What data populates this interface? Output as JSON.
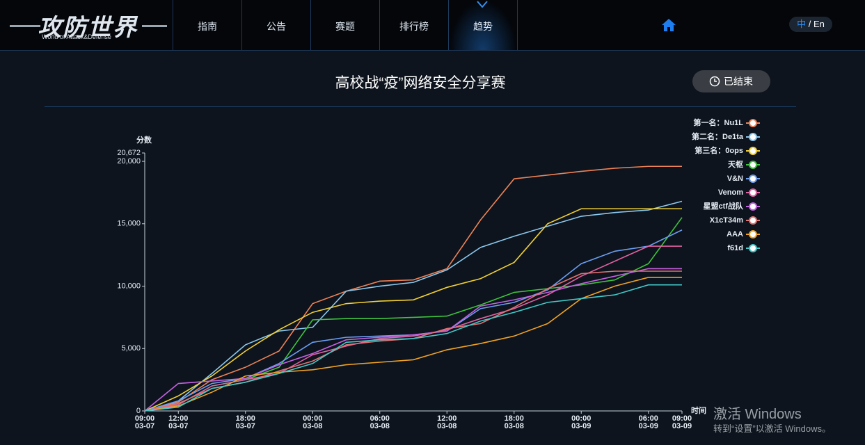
{
  "header": {
    "logo": "攻防世界",
    "logo_sub": "World of Attack&Defense",
    "nav": [
      "指南",
      "公告",
      "赛题",
      "排行榜",
      "趋势"
    ],
    "lang_zh": "中",
    "lang_en": "/ En"
  },
  "contest": {
    "title": "高校战“疫”网络安全分享赛",
    "status": "已结束"
  },
  "chart_data": {
    "type": "line",
    "ylabel": "分数",
    "xlabel": "时间",
    "x": [
      "03-07 09:00",
      "03-07 12:00",
      "03-07 15:00",
      "03-07 18:00",
      "03-07 21:00",
      "03-08 00:00",
      "03-08 03:00",
      "03-08 06:00",
      "03-08 09:00",
      "03-08 12:00",
      "03-08 15:00",
      "03-08 18:00",
      "03-08 21:00",
      "03-09 00:00",
      "03-09 03:00",
      "03-09 06:00",
      "03-09 09:00"
    ],
    "xlim": [
      "03-07 09:00",
      "03-09 09:00"
    ],
    "xticks": [
      {
        "value": "03-07 09:00",
        "label": [
          "09:00",
          "03-07"
        ]
      },
      {
        "value": "03-07 12:00",
        "label": [
          "12:00",
          "03-07"
        ]
      },
      {
        "value": "03-07 18:00",
        "label": [
          "18:00",
          "03-07"
        ]
      },
      {
        "value": "03-08 00:00",
        "label": [
          "00:00",
          "03-08"
        ]
      },
      {
        "value": "03-08 06:00",
        "label": [
          "06:00",
          "03-08"
        ]
      },
      {
        "value": "03-08 12:00",
        "label": [
          "12:00",
          "03-08"
        ]
      },
      {
        "value": "03-08 18:00",
        "label": [
          "18:00",
          "03-08"
        ]
      },
      {
        "value": "03-09 00:00",
        "label": [
          "00:00",
          "03-09"
        ]
      },
      {
        "value": "03-09 06:00",
        "label": [
          "06:00",
          "03-09"
        ]
      },
      {
        "value": "03-09 09:00",
        "label": [
          "09:00",
          "03-09"
        ]
      }
    ],
    "ylim": [
      0,
      20672
    ],
    "yticks": [
      0,
      {
        "value": 5000,
        "label": "5,000"
      },
      {
        "value": 10000,
        "label": "10,000"
      },
      {
        "value": 15000,
        "label": "15,000"
      },
      {
        "value": 20000,
        "label": "20,000"
      },
      {
        "value": 20672,
        "label": "20,672"
      }
    ],
    "series": [
      {
        "name": "第一名：Nu1L",
        "color": "#ee8256",
        "values": [
          0,
          700,
          2500,
          3500,
          4800,
          8600,
          9600,
          10400,
          10500,
          11400,
          15300,
          18600,
          18900,
          19200,
          19450,
          19600,
          19600
        ]
      },
      {
        "name": "第二名：De1ta",
        "color": "#8cc8ee",
        "values": [
          0,
          800,
          3000,
          5300,
          6400,
          6700,
          9600,
          10000,
          10300,
          11300,
          13100,
          14000,
          14800,
          15600,
          15900,
          16100,
          16800
        ]
      },
      {
        "name": "第三名：0ops",
        "color": "#f2d034",
        "values": [
          0,
          1200,
          2800,
          4800,
          6500,
          7900,
          8600,
          8800,
          8900,
          9900,
          10600,
          11900,
          15000,
          16200,
          16200,
          16200,
          16200
        ]
      },
      {
        "name": "天枢",
        "color": "#3ec43e",
        "values": [
          0,
          500,
          2000,
          2500,
          3500,
          7300,
          7400,
          7400,
          7500,
          7600,
          8500,
          9500,
          9800,
          10100,
          10500,
          11800,
          15500
        ]
      },
      {
        "name": "V&N",
        "color": "#6c9ef2",
        "values": [
          0,
          800,
          2200,
          2600,
          3800,
          5500,
          5900,
          6000,
          6100,
          6400,
          8200,
          8700,
          9700,
          11800,
          12800,
          13200,
          14500
        ]
      },
      {
        "name": "Venom",
        "color": "#e262a2",
        "values": [
          0,
          500,
          2000,
          2500,
          3000,
          4500,
          5200,
          5800,
          6000,
          6500,
          7400,
          8200,
          9300,
          10800,
          12000,
          13200,
          13200
        ]
      },
      {
        "name": "星盟ctf战队",
        "color": "#c462e2",
        "values": [
          0,
          2200,
          2400,
          2600,
          3700,
          4600,
          5700,
          5900,
          6100,
          6400,
          8400,
          8900,
          9500,
          10200,
          10800,
          11400,
          11400
        ]
      },
      {
        "name": "X1cT34m",
        "color": "#e07272",
        "values": [
          0,
          600,
          1800,
          2300,
          3200,
          4000,
          5300,
          5600,
          5800,
          6600,
          7000,
          8300,
          9800,
          11000,
          11200,
          11200,
          11200
        ]
      },
      {
        "name": "AAA",
        "color": "#f0a224",
        "values": [
          0,
          400,
          1500,
          2800,
          3100,
          3300,
          3700,
          3900,
          4100,
          4900,
          5400,
          6000,
          7000,
          9000,
          10000,
          10700,
          10700
        ]
      },
      {
        "name": "f61d",
        "color": "#42c8c8",
        "values": [
          0,
          300,
          1800,
          2300,
          3000,
          3800,
          5500,
          5700,
          5800,
          6200,
          7200,
          7900,
          8700,
          9000,
          9300,
          10100,
          10100
        ]
      }
    ]
  },
  "watermark": {
    "title": "激活 Windows",
    "text": "转到“设置”以激活 Windows。"
  }
}
